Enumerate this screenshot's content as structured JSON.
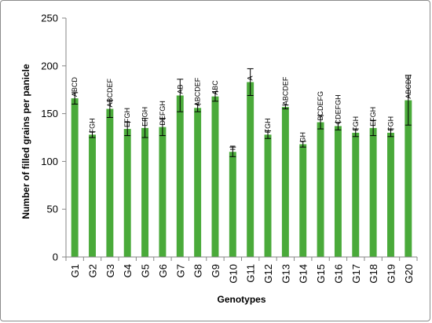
{
  "chart_data": {
    "type": "bar",
    "title": "",
    "xlabel": "Genotypes",
    "ylabel": "Number of filled grains per panicle",
    "ylim": [
      0,
      250
    ],
    "yticks": [
      0,
      50,
      100,
      150,
      200,
      250
    ],
    "grid": false,
    "legend": "none",
    "bar_color": "#4aaa3a",
    "categories": [
      "G1",
      "G2",
      "G3",
      "G4",
      "G5",
      "G6",
      "G7",
      "G8",
      "G9",
      "G10",
      "G11",
      "G12",
      "G13",
      "G14",
      "G15",
      "G16",
      "G17",
      "G18",
      "G19",
      "G20"
    ],
    "values": [
      166,
      128,
      155,
      134,
      135,
      136,
      169,
      156,
      168,
      110,
      183,
      128,
      157,
      118,
      141,
      137,
      130,
      135,
      130,
      164
    ],
    "errors": [
      6,
      3,
      9,
      7,
      10,
      9,
      17,
      4,
      5,
      5,
      14,
      4,
      2,
      3,
      7,
      4,
      4,
      8,
      4,
      26
    ],
    "significance": [
      "ABCD",
      "FGH",
      "ABCDEF",
      "EFGH",
      "EFGH",
      "DEFGH",
      "AB",
      "ABCDEF",
      "ABC",
      "H",
      "A",
      "FGH",
      "ABCDEF",
      "GH",
      "BCDEFG",
      "CDEFGH",
      "FGH",
      "EFGH",
      "FGH",
      "ABCDE"
    ]
  }
}
